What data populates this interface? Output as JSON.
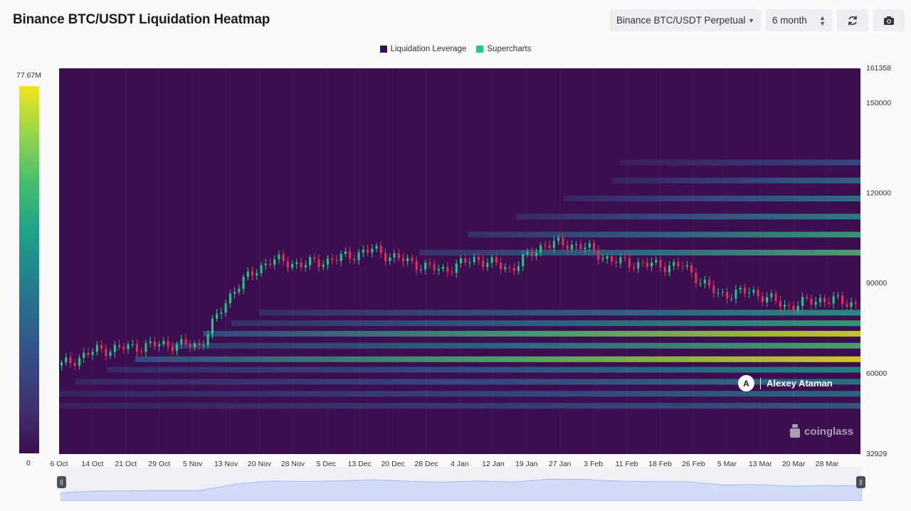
{
  "header": {
    "title": "Binance BTC/USDT Liquidation Heatmap",
    "symbol_select": "Binance BTC/USDT Perpetual",
    "range_select": "6 month",
    "refresh_icon": "refresh-icon",
    "camera_icon": "camera-icon"
  },
  "legend": [
    {
      "label": "Liquidation Leverage",
      "color": "#3b0f4f"
    },
    {
      "label": "Supercharts",
      "color": "#22c983"
    }
  ],
  "colorbar": {
    "max_label": "77.67M",
    "min_label": "0"
  },
  "watermark": {
    "name": "Alexey Ataman",
    "logo_letter": "A",
    "brand": "coinglass"
  },
  "chart_data": {
    "type": "heatmap",
    "title": "Binance BTC/USDT Liquidation Heatmap",
    "ylim": [
      32929,
      161358
    ],
    "y_top_label": "161358",
    "y_bottom_label": "32929",
    "y_ticks": [
      150000,
      120000,
      90000,
      60000
    ],
    "x_ticks": [
      "6 Oct",
      "14 Oct",
      "21 Oct",
      "29 Oct",
      "5 Nov",
      "13 Nov",
      "20 Nov",
      "28 Nov",
      "5 Dec",
      "13 Dec",
      "20 Dec",
      "28 Dec",
      "4 Jan",
      "12 Jan",
      "19 Jan",
      "27 Jan",
      "3 Feb",
      "11 Feb",
      "18 Feb",
      "26 Feb",
      "5 Mar",
      "13 Mar",
      "20 Mar",
      "28 Mar"
    ],
    "color_scale": {
      "min": 0,
      "max": 77670000,
      "colors": [
        "#3b0f4f",
        "#35528a",
        "#1ea28a",
        "#96d64a",
        "#f2e51c"
      ]
    },
    "price_series": {
      "name": "Supercharts",
      "x": [
        "6 Oct",
        "14 Oct",
        "21 Oct",
        "29 Oct",
        "5 Nov",
        "13 Nov",
        "20 Nov",
        "28 Nov",
        "5 Dec",
        "13 Dec",
        "20 Dec",
        "28 Dec",
        "4 Jan",
        "12 Jan",
        "19 Jan",
        "27 Jan",
        "3 Feb",
        "11 Feb",
        "18 Feb",
        "26 Feb",
        "5 Mar",
        "13 Mar",
        "20 Mar",
        "28 Mar"
      ],
      "values": [
        62500,
        67500,
        68500,
        69500,
        69000,
        88000,
        97500,
        96000,
        98000,
        101000,
        97000,
        94000,
        98000,
        94500,
        103000,
        102500,
        97000,
        96000,
        95500,
        86000,
        87000,
        82000,
        84500,
        83000
      ]
    },
    "liquidation_bands": [
      {
        "price": 64500,
        "intensity": 1.0
      },
      {
        "price": 73000,
        "intensity": 0.95
      },
      {
        "price": 76500,
        "intensity": 0.55
      },
      {
        "price": 69000,
        "intensity": 0.6
      },
      {
        "price": 61000,
        "intensity": 0.45
      },
      {
        "price": 57000,
        "intensity": 0.4
      },
      {
        "price": 53000,
        "intensity": 0.35
      },
      {
        "price": 49000,
        "intensity": 0.3
      },
      {
        "price": 80000,
        "intensity": 0.5
      },
      {
        "price": 100000,
        "intensity": 0.6
      },
      {
        "price": 106000,
        "intensity": 0.55
      },
      {
        "price": 112000,
        "intensity": 0.45
      },
      {
        "price": 118000,
        "intensity": 0.4
      },
      {
        "price": 124000,
        "intensity": 0.35
      },
      {
        "price": 130000,
        "intensity": 0.25
      }
    ]
  }
}
